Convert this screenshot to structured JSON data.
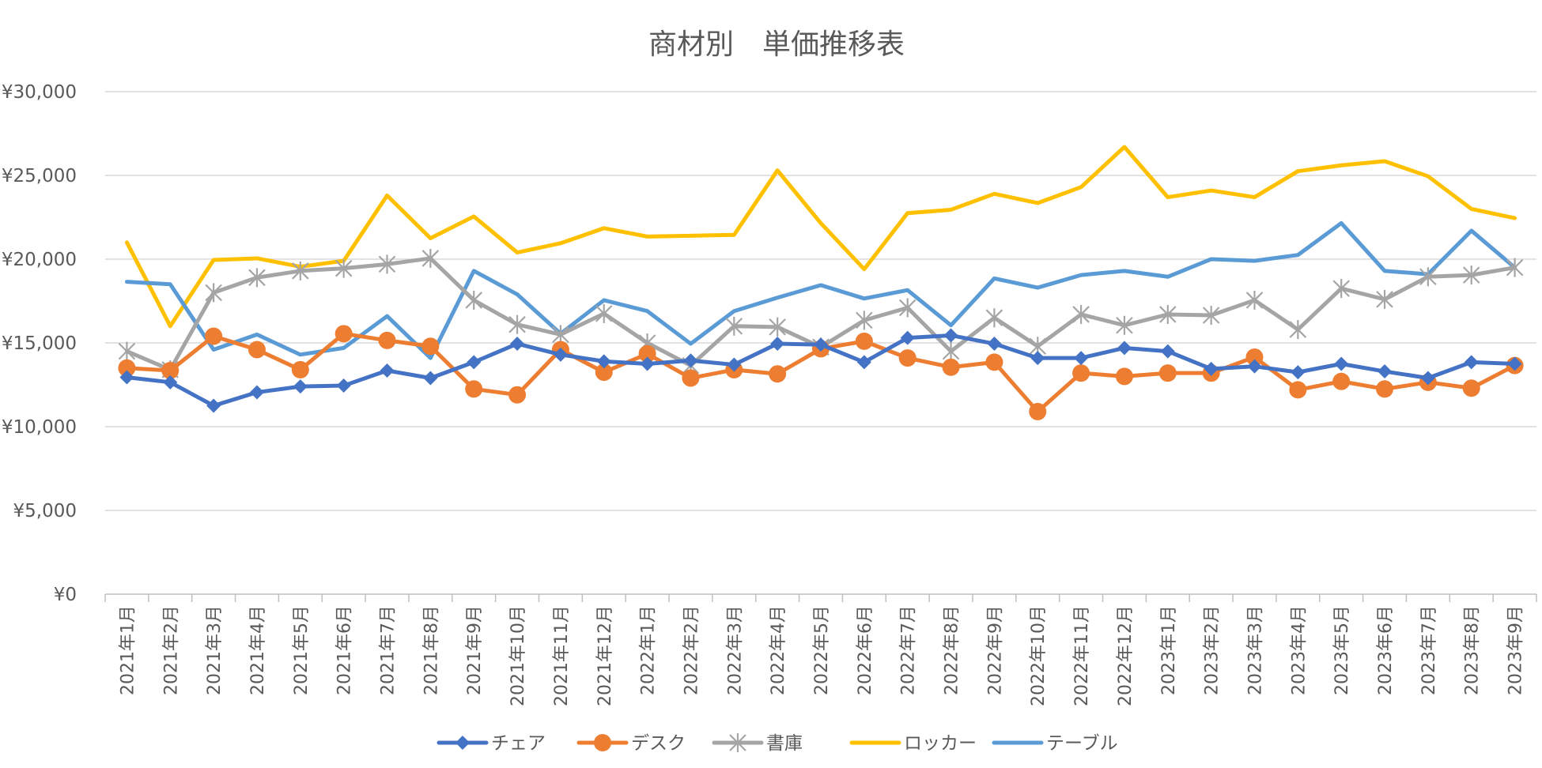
{
  "chart_data": {
    "type": "line",
    "title": "商材別　単価推移表",
    "xlabel": "",
    "ylabel": "",
    "ylim": [
      0,
      30000
    ],
    "y_ticks": [
      0,
      5000,
      10000,
      15000,
      20000,
      25000,
      30000
    ],
    "y_tick_labels": [
      "¥0",
      "¥5,000",
      "¥10,000",
      "¥15,000",
      "¥20,000",
      "¥25,000",
      "¥30,000"
    ],
    "grid": true,
    "legend_position": "bottom",
    "categories": [
      "2021年1月",
      "2021年2月",
      "2021年3月",
      "2021年4月",
      "2021年5月",
      "2021年6月",
      "2021年7月",
      "2021年8月",
      "2021年9月",
      "2021年10月",
      "2021年11月",
      "2021年12月",
      "2022年1月",
      "2022年2月",
      "2022年3月",
      "2022年4月",
      "2022年5月",
      "2022年6月",
      "2022年7月",
      "2022年8月",
      "2022年9月",
      "2022年10月",
      "2022年11月",
      "2022年12月",
      "2023年1月",
      "2023年2月",
      "2023年3月",
      "2023年4月",
      "2023年5月",
      "2023年6月",
      "2023年7月",
      "2023年8月",
      "2023年9月"
    ],
    "series": [
      {
        "name": "チェア",
        "color": "#4472c4",
        "marker": "diamond",
        "values": [
          12950,
          12650,
          11250,
          12050,
          12400,
          12450,
          13350,
          12900,
          13850,
          14950,
          14300,
          13900,
          13750,
          13950,
          13700,
          14950,
          14900,
          13850,
          15300,
          15450,
          14950,
          14100,
          14100,
          14700,
          14500,
          13450,
          13600,
          13250,
          13750,
          13300,
          12900,
          13850,
          13750
        ]
      },
      {
        "name": "デスク",
        "color": "#ed7d31",
        "marker": "circle",
        "values": [
          13500,
          13350,
          15400,
          14600,
          13400,
          15550,
          15150,
          14800,
          12250,
          11900,
          14600,
          13250,
          14350,
          12900,
          13400,
          13150,
          14650,
          15100,
          14100,
          13550,
          13850,
          10900,
          13200,
          13000,
          13200,
          13200,
          14150,
          12200,
          12700,
          12250,
          12650,
          12300,
          13650
        ]
      },
      {
        "name": "書庫",
        "color": "#a5a5a5",
        "marker": "star",
        "values": [
          14500,
          13400,
          18000,
          18900,
          19300,
          19450,
          19700,
          20050,
          17550,
          16100,
          15500,
          16750,
          15000,
          13650,
          16000,
          15950,
          14750,
          16350,
          17100,
          14500,
          16500,
          14800,
          16700,
          16050,
          16700,
          16650,
          17550,
          15800,
          18250,
          17600,
          18950,
          19050,
          19500
        ]
      },
      {
        "name": "ロッカー",
        "color": "#ffc000",
        "marker": "none",
        "values": [
          21000,
          16000,
          19950,
          20050,
          19550,
          19900,
          23800,
          21250,
          22550,
          20400,
          20950,
          21850,
          21350,
          21400,
          21450,
          25300,
          22150,
          19400,
          22750,
          22950,
          23900,
          23350,
          24300,
          26700,
          23700,
          24100,
          23700,
          25250,
          25600,
          25850,
          24950,
          23000,
          22450
        ]
      },
      {
        "name": "テーブル",
        "color": "#5b9bd5",
        "marker": "none",
        "values": [
          18650,
          18500,
          14600,
          15500,
          14300,
          14700,
          16600,
          14100,
          19300,
          17900,
          15550,
          17550,
          16900,
          14950,
          16900,
          17700,
          18450,
          17650,
          18150,
          16050,
          18850,
          18300,
          19050,
          19300,
          18950,
          20000,
          19900,
          20250,
          22150,
          19300,
          19100,
          21700,
          19500
        ]
      }
    ]
  }
}
